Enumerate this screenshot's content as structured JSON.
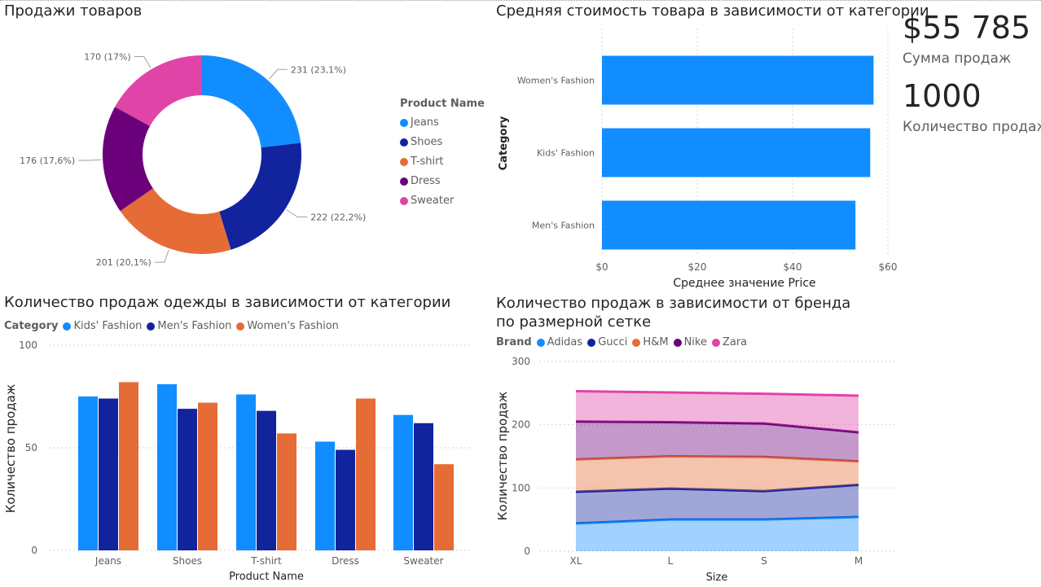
{
  "pie": {
    "title": "Продажи товаров",
    "legend_title": "Product Name",
    "chart_data": {
      "type": "pie",
      "categories": [
        "Jeans",
        "Shoes",
        "T-shirt",
        "Dress",
        "Sweater"
      ],
      "values": [
        231,
        222,
        201,
        176,
        170
      ],
      "labels": [
        "231 (23,1%)",
        "222 (22,2%)",
        "201 (20,1%)",
        "176 (17,6%)",
        "170 (17%)"
      ],
      "colors": [
        "#118DFF",
        "#12239E",
        "#E66C37",
        "#6B007B",
        "#E044A7"
      ]
    }
  },
  "avg_price": {
    "title": "Средняя стоимость товара в зависимости от категории",
    "chart_data": {
      "type": "bar",
      "orientation": "horizontal",
      "categories": [
        "Women's Fashion",
        "Kids' Fashion",
        "Men's Fashion"
      ],
      "values": [
        57,
        56.3,
        53.2
      ],
      "xlabel": "Среднее значение Price",
      "ylabel": "Category",
      "xlim": [
        0,
        60
      ],
      "ticks": [
        "$0",
        "$20",
        "$40",
        "$60"
      ],
      "color": "#118DFF"
    }
  },
  "kpi": {
    "sales_value": "$55 785",
    "sales_label": "Сумма продаж",
    "count_value": "1000",
    "count_label": "Количество продаж"
  },
  "clothes": {
    "title": "Количество продаж одежды в зависимости от категории",
    "legend_title": "Category",
    "chart_data": {
      "type": "bar",
      "categories": [
        "Jeans",
        "Shoes",
        "T-shirt",
        "Dress",
        "Sweater"
      ],
      "series": [
        {
          "name": "Kids' Fashion",
          "values": [
            75,
            81,
            76,
            53,
            66
          ],
          "color": "#118DFF"
        },
        {
          "name": "Men's Fashion",
          "values": [
            74,
            69,
            68,
            49,
            62
          ],
          "color": "#12239E"
        },
        {
          "name": "Women's Fashion",
          "values": [
            82,
            72,
            57,
            74,
            42
          ],
          "color": "#E66C37"
        }
      ],
      "xlabel": "Product Name",
      "ylabel": "Количество продаж",
      "ylim": [
        0,
        100
      ],
      "yticks": [
        "0",
        "50",
        "100"
      ]
    }
  },
  "brand": {
    "title": "Количество продаж в зависимости от бренда по размерной сетке",
    "legend_title": "Brand",
    "chart_data": {
      "type": "area",
      "stacked": true,
      "x": [
        "XL",
        "L",
        "S",
        "M"
      ],
      "series": [
        {
          "name": "Adidas",
          "values": [
            44,
            50,
            50,
            54
          ],
          "color": "#118DFF"
        },
        {
          "name": "Gucci",
          "values": [
            50,
            49,
            45,
            51
          ],
          "color": "#12239E"
        },
        {
          "name": "H&M",
          "values": [
            51,
            51,
            54,
            37
          ],
          "color": "#E66C37"
        },
        {
          "name": "Nike",
          "values": [
            60,
            54,
            53,
            46
          ],
          "color": "#6B007B"
        },
        {
          "name": "Zara",
          "values": [
            48,
            47,
            47,
            58
          ],
          "color": "#E044A7"
        }
      ],
      "xlabel": "Size",
      "ylabel": "Количество продаж",
      "ylim": [
        0,
        300
      ],
      "yticks": [
        "0",
        "100",
        "200",
        "300"
      ]
    }
  }
}
